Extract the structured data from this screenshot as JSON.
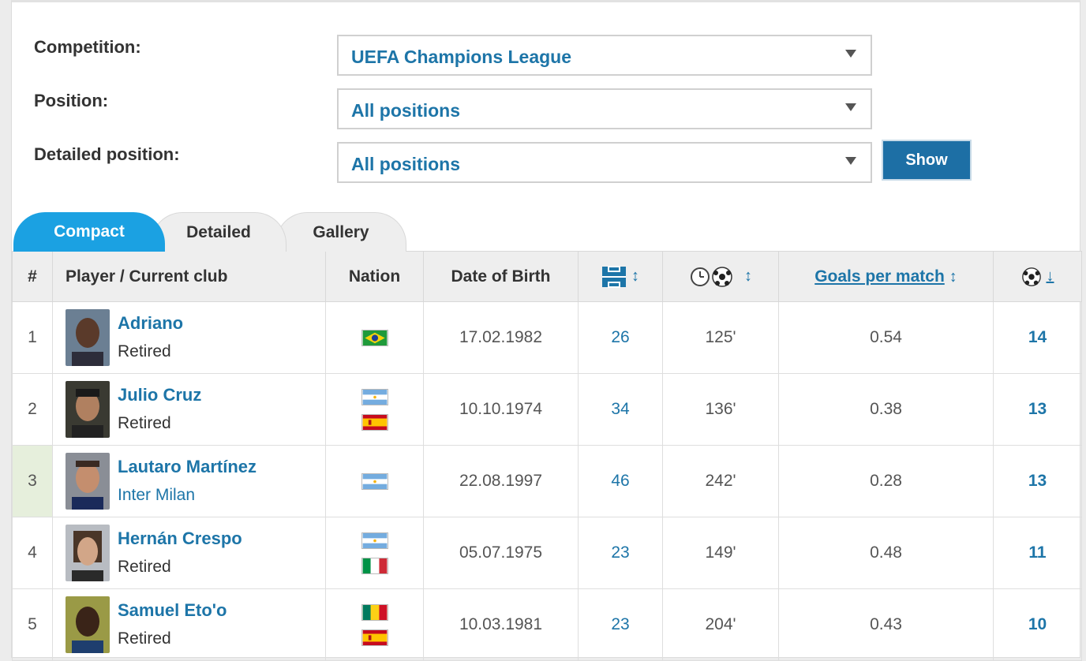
{
  "filters": {
    "competition_label": "Competition:",
    "competition_value": "UEFA Champions League",
    "position_label": "Position:",
    "position_value": "All positions",
    "detailed_label": "Detailed position:",
    "detailed_value": "All positions",
    "show_label": "Show"
  },
  "tabs": [
    "Compact",
    "Detailed",
    "Gallery"
  ],
  "columns": {
    "rank": "#",
    "player": "Player / Current club",
    "nation": "Nation",
    "dob": "Date of Birth",
    "goals_per_match": "Goals per match"
  },
  "icons": {
    "appearances": "pitch-icon",
    "minutes_per_goal": "clock-ball-icon",
    "goals": "ball-icon"
  },
  "players": [
    {
      "rank": "1",
      "name": "Adriano",
      "club": "Retired",
      "club_link": false,
      "nations": [
        "brazil"
      ],
      "dob": "17.02.1982",
      "apps": "26",
      "mpg": "125'",
      "gpm": "0.54",
      "goals": "14"
    },
    {
      "rank": "2",
      "name": "Julio Cruz",
      "club": "Retired",
      "club_link": false,
      "nations": [
        "argentina",
        "spain"
      ],
      "dob": "10.10.1974",
      "apps": "34",
      "mpg": "136'",
      "gpm": "0.38",
      "goals": "13"
    },
    {
      "rank": "3",
      "name": "Lautaro Martínez",
      "club": "Inter Milan",
      "club_link": true,
      "nations": [
        "argentina"
      ],
      "dob": "22.08.1997",
      "apps": "46",
      "mpg": "242'",
      "gpm": "0.28",
      "goals": "13"
    },
    {
      "rank": "4",
      "name": "Hernán Crespo",
      "club": "Retired",
      "club_link": false,
      "nations": [
        "argentina",
        "italy"
      ],
      "dob": "05.07.1975",
      "apps": "23",
      "mpg": "149'",
      "gpm": "0.48",
      "goals": "11"
    },
    {
      "rank": "5",
      "name": "Samuel Eto'o",
      "club": "Retired",
      "club_link": false,
      "nations": [
        "cameroon",
        "spain"
      ],
      "dob": "10.03.1981",
      "apps": "23",
      "mpg": "204'",
      "gpm": "0.43",
      "goals": "10"
    }
  ],
  "colors": {
    "link": "#1d75a8",
    "active_tab": "#1ba1e2",
    "show_button": "#1d6fa5",
    "highlight_rank": "#e6efdc"
  }
}
